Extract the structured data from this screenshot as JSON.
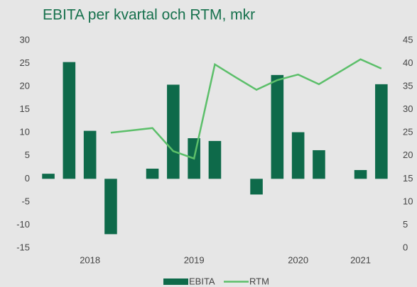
{
  "chart_data": {
    "type": "bar+line",
    "title": "EBITA per kvartal och RTM, mkr",
    "categories": [
      null,
      null,
      "2018",
      null,
      null,
      null,
      null,
      "2019",
      null,
      null,
      null,
      null,
      "2020",
      null,
      null,
      "2021",
      null
    ],
    "series": [
      {
        "name": "EBITA",
        "color": "#0e6a4a",
        "type": "bar",
        "values": [
          1.1,
          25.3,
          10.4,
          -12,
          null,
          2.2,
          20.4,
          8.8,
          8.2,
          null,
          -3.4,
          22.5,
          10.1,
          6.2,
          null,
          1.9,
          20.5
        ]
      },
      {
        "name": "RTM",
        "color": "#5cbf6a",
        "type": "line",
        "axis": "y2",
        "values": [
          null,
          null,
          null,
          25,
          25.5,
          26,
          21,
          19.4,
          39.8,
          37,
          34.3,
          36.4,
          37.6,
          35.5,
          38.2,
          40.9,
          38.9
        ]
      }
    ],
    "ylim": [
      -15,
      30
    ],
    "yticks": [
      -15,
      -10,
      -5,
      0,
      5,
      10,
      15,
      20,
      25,
      30
    ],
    "y2lim": [
      0,
      45
    ],
    "y2ticks": [
      0,
      5,
      10,
      15,
      20,
      25,
      30,
      35,
      40,
      45
    ],
    "legend": "bottom"
  }
}
